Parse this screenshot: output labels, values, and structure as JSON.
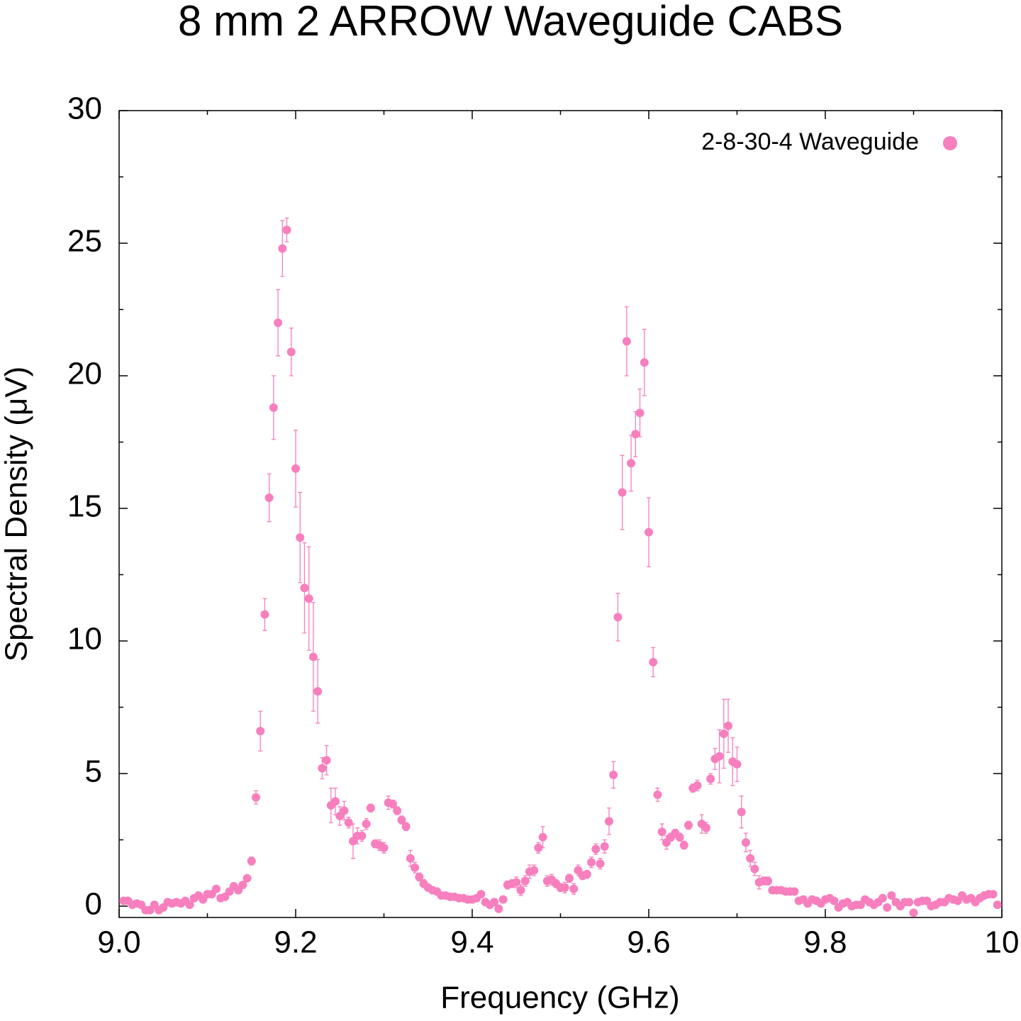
{
  "chart_data": {
    "type": "scatter",
    "title": "8 mm 2 ARROW Waveguide CABS",
    "xlabel": "Frequency (GHz)",
    "ylabel": "Spectral Density (μV)",
    "xlim": [
      9.0,
      10.0
    ],
    "ylim": [
      0,
      30
    ],
    "xticks": [
      {
        "value": 9.0,
        "label": "9.0"
      },
      9.2,
      9.4,
      9.6,
      9.8,
      10
    ],
    "yticks": [
      0,
      5,
      10,
      15,
      20,
      25,
      30
    ],
    "xminorticks": [
      9.1,
      9.3,
      9.5,
      9.7,
      9.9
    ],
    "yminorticks": [
      2.5,
      7.5,
      12.5,
      17.5,
      22.5,
      27.5
    ],
    "legend": "top-right",
    "series": [
      {
        "name": "2-8-30-4 Waveguide",
        "color": "#f77fbe",
        "x": [
          9.005,
          9.01,
          9.015,
          9.02,
          9.025,
          9.03,
          9.035,
          9.04,
          9.045,
          9.05,
          9.055,
          9.06,
          9.065,
          9.07,
          9.075,
          9.08,
          9.085,
          9.09,
          9.095,
          9.1,
          9.105,
          9.11,
          9.115,
          9.12,
          9.125,
          9.13,
          9.135,
          9.14,
          9.145,
          9.15,
          9.155,
          9.16,
          9.165,
          9.17,
          9.175,
          9.18,
          9.185,
          9.19,
          9.195,
          9.2,
          9.205,
          9.21,
          9.215,
          9.22,
          9.225,
          9.23,
          9.235,
          9.24,
          9.245,
          9.25,
          9.255,
          9.26,
          9.265,
          9.27,
          9.275,
          9.28,
          9.285,
          9.29,
          9.295,
          9.3,
          9.305,
          9.31,
          9.315,
          9.32,
          9.325,
          9.33,
          9.335,
          9.34,
          9.345,
          9.35,
          9.355,
          9.36,
          9.365,
          9.37,
          9.375,
          9.38,
          9.385,
          9.39,
          9.395,
          9.4,
          9.405,
          9.41,
          9.415,
          9.42,
          9.425,
          9.43,
          9.435,
          9.44,
          9.445,
          9.45,
          9.455,
          9.46,
          9.465,
          9.47,
          9.475,
          9.48,
          9.485,
          9.49,
          9.495,
          9.5,
          9.505,
          9.51,
          9.515,
          9.52,
          9.525,
          9.53,
          9.535,
          9.54,
          9.545,
          9.55,
          9.555,
          9.56,
          9.565,
          9.57,
          9.575,
          9.58,
          9.585,
          9.59,
          9.595,
          9.6,
          9.605,
          9.61,
          9.615,
          9.62,
          9.625,
          9.63,
          9.635,
          9.64,
          9.645,
          9.65,
          9.655,
          9.66,
          9.665,
          9.67,
          9.675,
          9.68,
          9.685,
          9.69,
          9.695,
          9.7,
          9.705,
          9.71,
          9.715,
          9.72,
          9.725,
          9.73,
          9.735,
          9.74,
          9.745,
          9.75,
          9.755,
          9.76,
          9.765,
          9.77,
          9.775,
          9.78,
          9.785,
          9.79,
          9.795,
          9.8,
          9.805,
          9.81,
          9.815,
          9.82,
          9.825,
          9.83,
          9.835,
          9.84,
          9.845,
          9.85,
          9.855,
          9.86,
          9.865,
          9.87,
          9.875,
          9.88,
          9.885,
          9.89,
          9.895,
          9.9,
          9.905,
          9.91,
          9.915,
          9.92,
          9.925,
          9.93,
          9.935,
          9.94,
          9.945,
          9.95,
          9.955,
          9.96,
          9.965,
          9.97,
          9.975,
          9.98,
          9.985,
          9.99,
          9.995
        ],
        "values": [
          0.2,
          0.2,
          0.05,
          0.1,
          0.05,
          -0.15,
          -0.15,
          0.05,
          -0.15,
          -0.05,
          0.15,
          0.1,
          0.15,
          0.1,
          0.2,
          0.05,
          0.3,
          0.4,
          0.25,
          0.45,
          0.45,
          0.65,
          0.3,
          0.35,
          0.55,
          0.75,
          0.6,
          0.8,
          1.05,
          1.7,
          4.1,
          6.6,
          11.0,
          15.4,
          18.8,
          22.0,
          24.8,
          25.5,
          20.9,
          16.5,
          13.9,
          12.0,
          11.6,
          9.4,
          8.1,
          5.2,
          5.5,
          3.8,
          3.95,
          3.4,
          3.6,
          3.15,
          2.45,
          2.65,
          2.65,
          3.1,
          3.7,
          2.35,
          2.3,
          2.2,
          3.9,
          3.85,
          3.6,
          3.25,
          3.0,
          1.8,
          1.45,
          1.1,
          0.85,
          0.7,
          0.6,
          0.55,
          0.4,
          0.4,
          0.35,
          0.35,
          0.3,
          0.3,
          0.25,
          0.25,
          0.3,
          0.45,
          0.15,
          0.05,
          0.15,
          -0.1,
          0.25,
          0.8,
          0.85,
          0.9,
          0.6,
          0.95,
          1.3,
          1.35,
          2.2,
          2.6,
          0.95,
          1.0,
          0.85,
          0.7,
          0.7,
          1.05,
          0.65,
          1.35,
          1.15,
          1.2,
          1.65,
          2.15,
          1.6,
          2.25,
          3.2,
          4.95,
          10.9,
          15.6,
          21.3,
          16.7,
          17.8,
          18.6,
          20.5,
          14.1,
          9.2,
          4.2,
          2.8,
          2.4,
          2.6,
          2.75,
          2.6,
          2.3,
          3.05,
          4.45,
          4.55,
          3.1,
          2.95,
          4.8,
          5.55,
          5.65,
          6.5,
          6.8,
          5.45,
          5.35,
          3.55,
          2.4,
          1.8,
          1.4,
          0.9,
          0.95,
          0.95,
          0.6,
          0.6,
          0.6,
          0.55,
          0.55,
          0.55,
          0.2,
          0.25,
          0.1,
          0.25,
          0.2,
          0.1,
          0.25,
          0.3,
          0.2,
          -0.05,
          0.1,
          0.15,
          0.0,
          0.05,
          0.05,
          0.25,
          0.15,
          0.05,
          0.15,
          0.3,
          -0.05,
          0.4,
          0.15,
          0.0,
          0.15,
          0.15,
          -0.25,
          0.15,
          0.2,
          0.2,
          0.0,
          0.05,
          0.15,
          0.15,
          0.3,
          0.25,
          0.2,
          0.4,
          0.25,
          0.3,
          0.15,
          0.3,
          0.4,
          0.45,
          0.45,
          0.05
        ],
        "errors": [
          0.1,
          0.1,
          0.1,
          0.1,
          0.1,
          0.1,
          0.1,
          0.1,
          0.1,
          0.1,
          0.1,
          0.1,
          0.1,
          0.1,
          0.1,
          0.1,
          0.1,
          0.1,
          0.1,
          0.1,
          0.1,
          0.1,
          0.1,
          0.1,
          0.1,
          0.1,
          0.1,
          0.1,
          0.1,
          0.15,
          0.25,
          0.75,
          0.6,
          0.9,
          1.2,
          1.25,
          1.05,
          0.45,
          0.9,
          1.45,
          1.7,
          1.7,
          1.95,
          2.05,
          1.2,
          0.4,
          0.55,
          0.65,
          0.5,
          0.35,
          0.35,
          0.2,
          0.65,
          0.3,
          0.2,
          0.2,
          0.15,
          0.15,
          0.2,
          0.2,
          0.25,
          0.15,
          0.15,
          0.15,
          0.15,
          0.3,
          0.2,
          0.15,
          0.15,
          0.1,
          0.1,
          0.1,
          0.1,
          0.1,
          0.1,
          0.1,
          0.1,
          0.1,
          0.1,
          0.1,
          0.1,
          0.1,
          0.1,
          0.1,
          0.1,
          0.1,
          0.1,
          0.15,
          0.15,
          0.2,
          0.2,
          0.2,
          0.25,
          0.2,
          0.2,
          0.4,
          0.2,
          0.2,
          0.15,
          0.15,
          0.2,
          0.15,
          0.2,
          0.2,
          0.15,
          0.15,
          0.2,
          0.2,
          0.2,
          0.25,
          0.5,
          0.5,
          0.9,
          1.4,
          1.3,
          1.05,
          0.85,
          0.9,
          1.25,
          1.3,
          0.55,
          0.25,
          0.3,
          0.25,
          0.15,
          0.15,
          0.15,
          0.15,
          0.15,
          0.15,
          0.2,
          0.35,
          0.2,
          0.2,
          0.4,
          1.0,
          1.3,
          1.0,
          0.9,
          0.65,
          0.6,
          0.35,
          0.3,
          0.25,
          0.25,
          0.15,
          0.15,
          0.1,
          0.1,
          0.1,
          0.1,
          0.1,
          0.1,
          0.1,
          0.1,
          0.1,
          0.1,
          0.1,
          0.1,
          0.1,
          0.1,
          0.1,
          0.1,
          0.1,
          0.1,
          0.1,
          0.1,
          0.1,
          0.1,
          0.1,
          0.1,
          0.1,
          0.1,
          0.1,
          0.1,
          0.1,
          0.1,
          0.1,
          0.1,
          0.1,
          0.1,
          0.1,
          0.1,
          0.1,
          0.1,
          0.1,
          0.1,
          0.1,
          0.1,
          0.1,
          0.1,
          0.1,
          0.1,
          0.1,
          0.1,
          0.1,
          0.1,
          0.1,
          0.1
        ]
      }
    ]
  }
}
